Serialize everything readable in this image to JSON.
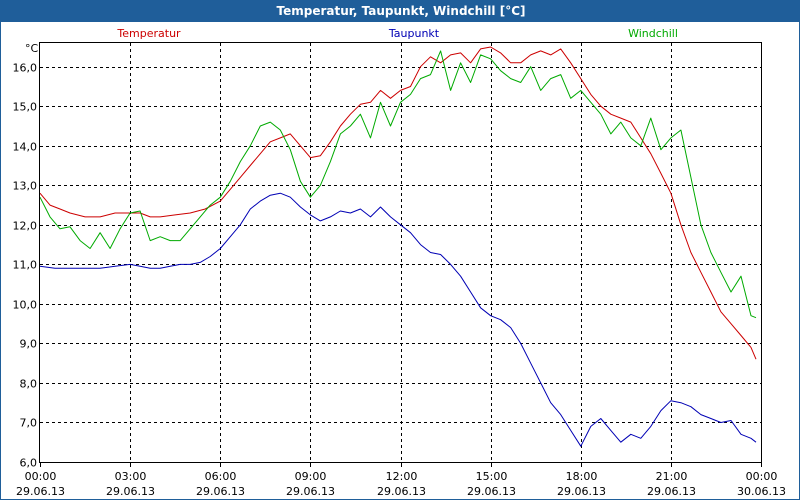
{
  "window": {
    "title": "Temperatur, Taupunkt, Windchill [°C]"
  },
  "colors": {
    "temperatur": "#cc0000",
    "taupunkt": "#0000b4",
    "windchill": "#00aa00",
    "titlebar": "#1f5e9a",
    "grid": "#000000"
  },
  "chart_data": {
    "type": "line",
    "title": "Temperatur, Taupunkt, Windchill [°C]",
    "ylabel": "°C",
    "ylim": [
      6.0,
      16.6
    ],
    "xlim": [
      "29.06.13 00:00",
      "30.06.13 00:00"
    ],
    "grid": true,
    "y_ticks": [
      "6,0",
      "7,0",
      "8,0",
      "9,0",
      "10,0",
      "11,0",
      "12,0",
      "13,0",
      "14,0",
      "15,0",
      "16,0"
    ],
    "y_tick_values": [
      6,
      7,
      8,
      9,
      10,
      11,
      12,
      13,
      14,
      15,
      16
    ],
    "x_ticks": [
      {
        "time": "00:00",
        "date": "29.06.13"
      },
      {
        "time": "03:00",
        "date": "29.06.13"
      },
      {
        "time": "06:00",
        "date": "29.06.13"
      },
      {
        "time": "09:00",
        "date": "29.06.13"
      },
      {
        "time": "12:00",
        "date": "29.06.13"
      },
      {
        "time": "15:00",
        "date": "29.06.13"
      },
      {
        "time": "18:00",
        "date": "29.06.13"
      },
      {
        "time": "21:00",
        "date": "29.06.13"
      },
      {
        "time": "00:00",
        "date": "30.06.13"
      }
    ],
    "series": [
      {
        "name": "Temperatur",
        "color": "#cc0000",
        "x": [
          "29.06.13 00:00",
          "29.06.13 00:20",
          "29.06.13 00:40",
          "29.06.13 01:00",
          "29.06.13 01:30",
          "29.06.13 02:00",
          "29.06.13 02:30",
          "29.06.13 03:00",
          "29.06.13 03:20",
          "29.06.13 03:40",
          "29.06.13 04:00",
          "29.06.13 04:30",
          "29.06.13 05:00",
          "29.06.13 05:30",
          "29.06.13 06:00",
          "29.06.13 06:20",
          "29.06.13 06:40",
          "29.06.13 07:00",
          "29.06.13 07:20",
          "29.06.13 07:40",
          "29.06.13 08:00",
          "29.06.13 08:20",
          "29.06.13 08:40",
          "29.06.13 09:00",
          "29.06.13 09:20",
          "29.06.13 09:40",
          "29.06.13 10:00",
          "29.06.13 10:20",
          "29.06.13 10:40",
          "29.06.13 11:00",
          "29.06.13 11:20",
          "29.06.13 11:40",
          "29.06.13 12:00",
          "29.06.13 12:20",
          "29.06.13 12:40",
          "29.06.13 13:00",
          "29.06.13 13:20",
          "29.06.13 13:40",
          "29.06.13 14:00",
          "29.06.13 14:20",
          "29.06.13 14:40",
          "29.06.13 15:00",
          "29.06.13 15:20",
          "29.06.13 15:40",
          "29.06.13 16:00",
          "29.06.13 16:20",
          "29.06.13 16:40",
          "29.06.13 17:00",
          "29.06.13 17:20",
          "29.06.13 17:40",
          "29.06.13 18:00",
          "29.06.13 18:20",
          "29.06.13 18:40",
          "29.06.13 19:00",
          "29.06.13 19:20",
          "29.06.13 19:40",
          "29.06.13 20:00",
          "29.06.13 20:20",
          "29.06.13 20:40",
          "29.06.13 21:00",
          "29.06.13 21:20",
          "29.06.13 21:40",
          "29.06.13 22:00",
          "29.06.13 22:20",
          "29.06.13 22:40",
          "29.06.13 23:00",
          "29.06.13 23:20",
          "29.06.13 23:40",
          "29.06.13 23:50"
        ],
        "values": [
          12.8,
          12.5,
          12.4,
          12.3,
          12.2,
          12.2,
          12.3,
          12.3,
          12.3,
          12.2,
          12.2,
          12.25,
          12.3,
          12.4,
          12.6,
          12.9,
          13.2,
          13.5,
          13.8,
          14.1,
          14.2,
          14.3,
          14.0,
          13.7,
          13.75,
          14.1,
          14.5,
          14.8,
          15.05,
          15.1,
          15.4,
          15.2,
          15.4,
          15.5,
          16.0,
          16.25,
          16.1,
          16.3,
          16.35,
          16.1,
          16.45,
          16.5,
          16.35,
          16.1,
          16.1,
          16.3,
          16.4,
          16.3,
          16.45,
          16.1,
          15.7,
          15.3,
          15.0,
          14.8,
          14.7,
          14.6,
          14.2,
          13.8,
          13.3,
          12.8,
          12.0,
          11.3,
          10.8,
          10.3,
          9.8,
          9.5,
          9.2,
          8.9,
          8.6
        ]
      },
      {
        "name": "Taupunkt",
        "color": "#0000b4",
        "x": [
          "29.06.13 00:00",
          "29.06.13 00:30",
          "29.06.13 01:00",
          "29.06.13 01:30",
          "29.06.13 02:00",
          "29.06.13 02:30",
          "29.06.13 03:00",
          "29.06.13 03:20",
          "29.06.13 03:40",
          "29.06.13 04:00",
          "29.06.13 04:20",
          "29.06.13 04:40",
          "29.06.13 05:00",
          "29.06.13 05:20",
          "29.06.13 05:40",
          "29.06.13 06:00",
          "29.06.13 06:20",
          "29.06.13 06:40",
          "29.06.13 07:00",
          "29.06.13 07:20",
          "29.06.13 07:40",
          "29.06.13 08:00",
          "29.06.13 08:20",
          "29.06.13 08:40",
          "29.06.13 09:00",
          "29.06.13 09:20",
          "29.06.13 09:40",
          "29.06.13 10:00",
          "29.06.13 10:20",
          "29.06.13 10:40",
          "29.06.13 11:00",
          "29.06.13 11:20",
          "29.06.13 11:40",
          "29.06.13 12:00",
          "29.06.13 12:20",
          "29.06.13 12:40",
          "29.06.13 13:00",
          "29.06.13 13:20",
          "29.06.13 13:40",
          "29.06.13 14:00",
          "29.06.13 14:20",
          "29.06.13 14:40",
          "29.06.13 15:00",
          "29.06.13 15:20",
          "29.06.13 15:40",
          "29.06.13 16:00",
          "29.06.13 16:20",
          "29.06.13 16:40",
          "29.06.13 17:00",
          "29.06.13 17:20",
          "29.06.13 17:40",
          "29.06.13 18:00",
          "29.06.13 18:20",
          "29.06.13 18:40",
          "29.06.13 19:00",
          "29.06.13 19:20",
          "29.06.13 19:40",
          "29.06.13 20:00",
          "29.06.13 20:20",
          "29.06.13 20:40",
          "29.06.13 21:00",
          "29.06.13 21:20",
          "29.06.13 21:40",
          "29.06.13 22:00",
          "29.06.13 22:20",
          "29.06.13 22:40",
          "29.06.13 23:00",
          "29.06.13 23:20",
          "29.06.13 23:40",
          "29.06.13 23:50"
        ],
        "values": [
          10.95,
          10.9,
          10.9,
          10.9,
          10.9,
          10.95,
          11.0,
          10.95,
          10.9,
          10.9,
          10.95,
          11.0,
          11.0,
          11.05,
          11.2,
          11.4,
          11.7,
          12.0,
          12.4,
          12.6,
          12.75,
          12.8,
          12.7,
          12.45,
          12.25,
          12.1,
          12.2,
          12.35,
          12.3,
          12.4,
          12.2,
          12.45,
          12.2,
          12.0,
          11.8,
          11.5,
          11.3,
          11.25,
          11.0,
          10.7,
          10.3,
          9.9,
          9.7,
          9.6,
          9.4,
          9.0,
          8.5,
          8.0,
          7.5,
          7.2,
          6.8,
          6.4,
          6.9,
          7.1,
          6.8,
          6.5,
          6.7,
          6.6,
          6.9,
          7.3,
          7.55,
          7.5,
          7.4,
          7.2,
          7.1,
          7.0,
          7.05,
          6.7,
          6.6,
          6.5
        ]
      },
      {
        "name": "Windchill",
        "color": "#00aa00",
        "x": [
          "29.06.13 00:00",
          "29.06.13 00:20",
          "29.06.13 00:40",
          "29.06.13 01:00",
          "29.06.13 01:20",
          "29.06.13 01:40",
          "29.06.13 02:00",
          "29.06.13 02:20",
          "29.06.13 02:40",
          "29.06.13 03:00",
          "29.06.13 03:20",
          "29.06.13 03:40",
          "29.06.13 04:00",
          "29.06.13 04:20",
          "29.06.13 04:40",
          "29.06.13 05:00",
          "29.06.13 05:20",
          "29.06.13 05:40",
          "29.06.13 06:00",
          "29.06.13 06:20",
          "29.06.13 06:40",
          "29.06.13 07:00",
          "29.06.13 07:20",
          "29.06.13 07:40",
          "29.06.13 08:00",
          "29.06.13 08:20",
          "29.06.13 08:40",
          "29.06.13 09:00",
          "29.06.13 09:20",
          "29.06.13 09:40",
          "29.06.13 10:00",
          "29.06.13 10:20",
          "29.06.13 10:40",
          "29.06.13 11:00",
          "29.06.13 11:20",
          "29.06.13 11:40",
          "29.06.13 12:00",
          "29.06.13 12:20",
          "29.06.13 12:40",
          "29.06.13 13:00",
          "29.06.13 13:20",
          "29.06.13 13:40",
          "29.06.13 14:00",
          "29.06.13 14:20",
          "29.06.13 14:40",
          "29.06.13 15:00",
          "29.06.13 15:20",
          "29.06.13 15:40",
          "29.06.13 16:00",
          "29.06.13 16:20",
          "29.06.13 16:40",
          "29.06.13 17:00",
          "29.06.13 17:20",
          "29.06.13 17:40",
          "29.06.13 18:00",
          "29.06.13 18:20",
          "29.06.13 18:40",
          "29.06.13 19:00",
          "29.06.13 19:20",
          "29.06.13 19:40",
          "29.06.13 20:00",
          "29.06.13 20:20",
          "29.06.13 20:40",
          "29.06.13 21:00",
          "29.06.13 21:20",
          "29.06.13 21:40",
          "29.06.13 22:00",
          "29.06.13 22:20",
          "29.06.13 22:40",
          "29.06.13 23:00",
          "29.06.13 23:20",
          "29.06.13 23:40",
          "29.06.13 23:50"
        ],
        "values": [
          12.7,
          12.2,
          11.9,
          11.95,
          11.6,
          11.4,
          11.8,
          11.4,
          11.9,
          12.3,
          12.35,
          11.6,
          11.7,
          11.6,
          11.6,
          11.9,
          12.2,
          12.5,
          12.7,
          13.1,
          13.6,
          14.0,
          14.5,
          14.6,
          14.4,
          13.9,
          13.1,
          12.7,
          13.0,
          13.6,
          14.3,
          14.5,
          14.8,
          14.2,
          15.1,
          14.5,
          15.1,
          15.3,
          15.7,
          15.8,
          16.4,
          15.4,
          16.1,
          15.6,
          16.3,
          16.2,
          15.9,
          15.7,
          15.6,
          16.0,
          15.4,
          15.7,
          15.8,
          15.2,
          15.4,
          15.1,
          14.8,
          14.3,
          14.6,
          14.2,
          14.0,
          14.7,
          13.9,
          14.2,
          14.4,
          13.2,
          12.0,
          11.3,
          10.8,
          10.3,
          10.7,
          9.7,
          9.65
        ]
      }
    ]
  }
}
